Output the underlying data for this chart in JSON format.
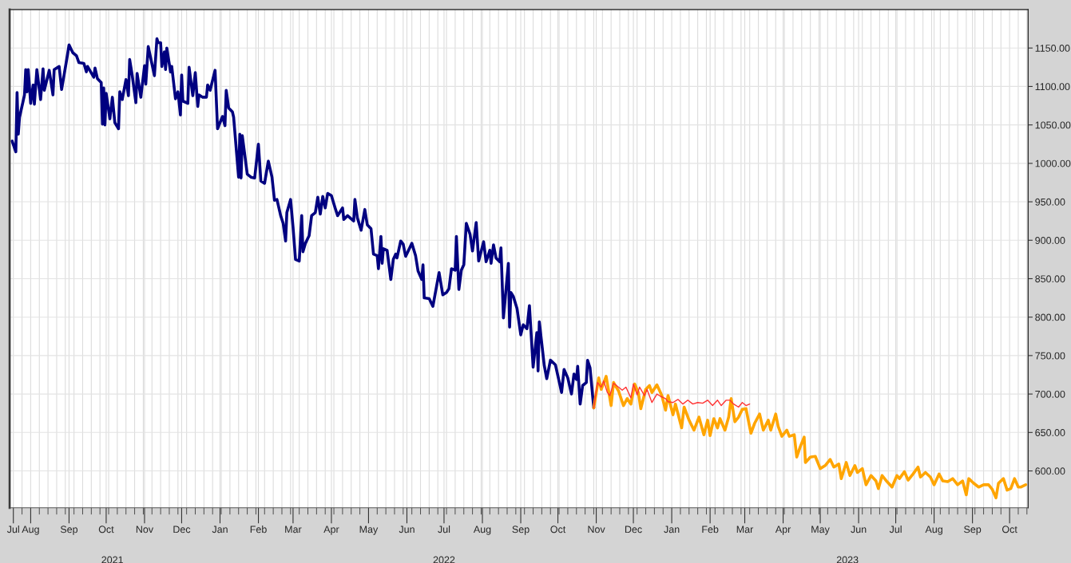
{
  "chart_data": {
    "type": "line",
    "xlim": [
      "2021-07-15",
      "2023-10-16"
    ],
    "ylim": [
      552,
      1200
    ],
    "x2lim": [
      "2021-07-15",
      "2023-10-16"
    ],
    "xticks": [
      {
        "value": "2021-07-18",
        "label": "Jul"
      },
      {
        "value": "2021-08-01",
        "label": "Aug"
      },
      {
        "value": "2021-09-01",
        "label": "Sep"
      },
      {
        "value": "2021-10-01",
        "label": "Oct"
      },
      {
        "value": "2021-11-01",
        "label": "Nov"
      },
      {
        "value": "2021-12-01",
        "label": "Dec"
      },
      {
        "value": "2022-01-01",
        "label": "Jan"
      },
      {
        "value": "2022-02-01",
        "label": "Feb"
      },
      {
        "value": "2022-03-01",
        "label": "Mar"
      },
      {
        "value": "2022-04-01",
        "label": "Apr"
      },
      {
        "value": "2022-05-01",
        "label": "May"
      },
      {
        "value": "2022-06-01",
        "label": "Jun"
      },
      {
        "value": "2022-07-01",
        "label": "Jul"
      },
      {
        "value": "2022-08-01",
        "label": "Aug"
      },
      {
        "value": "2022-09-01",
        "label": "Sep"
      },
      {
        "value": "2022-10-01",
        "label": "Oct"
      },
      {
        "value": "2022-11-01",
        "label": "Nov"
      },
      {
        "value": "2022-12-01",
        "label": "Dec"
      },
      {
        "value": "2023-01-01",
        "label": "Jan"
      },
      {
        "value": "2023-02-01",
        "label": "Feb"
      },
      {
        "value": "2023-03-01",
        "label": "Mar"
      },
      {
        "value": "2023-04-01",
        "label": "Apr"
      },
      {
        "value": "2023-05-01",
        "label": "May"
      },
      {
        "value": "2023-06-01",
        "label": "Jun"
      },
      {
        "value": "2023-07-01",
        "label": "Jul"
      },
      {
        "value": "2023-08-01",
        "label": "Aug"
      },
      {
        "value": "2023-09-01",
        "label": "Sep"
      },
      {
        "value": "2023-10-01",
        "label": "Oct"
      }
    ],
    "x2ticks": [
      {
        "value": "2021-10-06",
        "label": "2021"
      },
      {
        "value": "2022-07-01",
        "label": "2022"
      },
      {
        "value": "2023-05-23",
        "label": "2023"
      }
    ],
    "yticks": [
      {
        "value": 600,
        "label": "600.00"
      },
      {
        "value": 650,
        "label": "650.00"
      },
      {
        "value": 700,
        "label": "700.00"
      },
      {
        "value": 750,
        "label": "750.00"
      },
      {
        "value": 800,
        "label": "800.00"
      },
      {
        "value": 850,
        "label": "850.00"
      },
      {
        "value": 900,
        "label": "900.00"
      },
      {
        "value": 950,
        "label": "950.00"
      },
      {
        "value": 1000,
        "label": "1000.00"
      },
      {
        "value": 1050,
        "label": "1050.00"
      },
      {
        "value": 1100,
        "label": "1100.00"
      },
      {
        "value": 1150,
        "label": "1150.00"
      }
    ],
    "grid": true,
    "series": [
      {
        "color": "#000080",
        "x": [
          "2021-07-17",
          "2021-07-20",
          "2021-07-21",
          "2021-07-22",
          "2021-07-23",
          "2021-07-27",
          "2021-07-28",
          "2021-07-29",
          "2021-07-30",
          "2021-08-01",
          "2021-08-03",
          "2021-08-04",
          "2021-08-06",
          "2021-08-09",
          "2021-08-11",
          "2021-08-12",
          "2021-08-16",
          "2021-08-19",
          "2021-08-20",
          "2021-08-24",
          "2021-08-26",
          "2021-08-30",
          "2021-09-01",
          "2021-09-04",
          "2021-09-07",
          "2021-09-09",
          "2021-09-13",
          "2021-09-15",
          "2021-09-16",
          "2021-09-21",
          "2021-09-22",
          "2021-09-24",
          "2021-09-27",
          "2021-09-28",
          "2021-09-29",
          "2021-09-30",
          "2021-10-01",
          "2021-10-04",
          "2021-10-06",
          "2021-10-08",
          "2021-10-11",
          "2021-10-12",
          "2021-10-14",
          "2021-10-17",
          "2021-10-19",
          "2021-10-20",
          "2021-10-22",
          "2021-10-25",
          "2021-10-26",
          "2021-10-29",
          "2021-11-01",
          "2021-11-02",
          "2021-11-04",
          "2021-11-09",
          "2021-11-11",
          "2021-11-12",
          "2021-11-14",
          "2021-11-15",
          "2021-11-17",
          "2021-11-18",
          "2021-11-19",
          "2021-11-22",
          "2021-11-23",
          "2021-11-26",
          "2021-11-28",
          "2021-11-30",
          "2021-12-01",
          "2021-12-02",
          "2021-12-06",
          "2021-12-07",
          "2021-12-10",
          "2021-12-12",
          "2021-12-14",
          "2021-12-15",
          "2021-12-18",
          "2021-12-21",
          "2021-12-22",
          "2021-12-24",
          "2021-12-28",
          "2021-12-30",
          "2022-01-03",
          "2022-01-05",
          "2022-01-06",
          "2022-01-08",
          "2022-01-11",
          "2022-01-12",
          "2022-01-16",
          "2022-01-17",
          "2022-01-18",
          "2022-01-19",
          "2022-01-23",
          "2022-01-26",
          "2022-01-29",
          "2022-02-01",
          "2022-02-03",
          "2022-02-06",
          "2022-02-09",
          "2022-02-12",
          "2022-02-14",
          "2022-02-16",
          "2022-02-19",
          "2022-02-21",
          "2022-02-23",
          "2022-02-24",
          "2022-02-27",
          "2022-03-01",
          "2022-03-03",
          "2022-03-06",
          "2022-03-08",
          "2022-03-09",
          "2022-03-11",
          "2022-03-14",
          "2022-03-16",
          "2022-03-19",
          "2022-03-21",
          "2022-03-23",
          "2022-03-25",
          "2022-03-27",
          "2022-03-29",
          "2022-04-01",
          "2022-04-04",
          "2022-04-06",
          "2022-04-10",
          "2022-04-11",
          "2022-04-14",
          "2022-04-19",
          "2022-04-20",
          "2022-04-22",
          "2022-04-25",
          "2022-04-28",
          "2022-04-30",
          "2022-05-03",
          "2022-05-05",
          "2022-05-08",
          "2022-05-09",
          "2022-05-11",
          "2022-05-12",
          "2022-05-13",
          "2022-05-16",
          "2022-05-19",
          "2022-05-21",
          "2022-05-23",
          "2022-05-24",
          "2022-05-27",
          "2022-05-29",
          "2022-05-31",
          "2022-06-05",
          "2022-06-08",
          "2022-06-10",
          "2022-06-13",
          "2022-06-14",
          "2022-06-15",
          "2022-06-19",
          "2022-06-22",
          "2022-06-27",
          "2022-06-30",
          "2022-07-03",
          "2022-07-05",
          "2022-07-07",
          "2022-07-10",
          "2022-07-11",
          "2022-07-13",
          "2022-07-15",
          "2022-07-17",
          "2022-07-19",
          "2022-07-22",
          "2022-07-24",
          "2022-07-27",
          "2022-07-29",
          "2022-08-02",
          "2022-08-04",
          "2022-08-07",
          "2022-08-08",
          "2022-08-10",
          "2022-08-12",
          "2022-08-15",
          "2022-08-16",
          "2022-08-18",
          "2022-08-22",
          "2022-08-23",
          "2022-08-24",
          "2022-08-26",
          "2022-08-29",
          "2022-09-01",
          "2022-09-03",
          "2022-09-06",
          "2022-09-08",
          "2022-09-11",
          "2022-09-14",
          "2022-09-15",
          "2022-09-16",
          "2022-09-20",
          "2022-09-22",
          "2022-09-25",
          "2022-09-29",
          "2022-10-04",
          "2022-10-06",
          "2022-10-09",
          "2022-10-12",
          "2022-10-14",
          "2022-10-16",
          "2022-10-17",
          "2022-10-19",
          "2022-10-21",
          "2022-10-24",
          "2022-10-25",
          "2022-10-27",
          "2022-10-30"
        ],
        "values": [
          1029,
          1015,
          1092,
          1038,
          1060,
          1089,
          1122,
          1093,
          1122,
          1078,
          1102,
          1077,
          1122,
          1083,
          1123,
          1095,
          1121,
          1089,
          1122,
          1126,
          1096,
          1134,
          1154,
          1144,
          1140,
          1131,
          1130,
          1119,
          1126,
          1112,
          1124,
          1110,
          1105,
          1051,
          1098,
          1050,
          1091,
          1058,
          1086,
          1053,
          1045,
          1093,
          1083,
          1109,
          1088,
          1135,
          1115,
          1079,
          1117,
          1086,
          1127,
          1103,
          1152,
          1114,
          1162,
          1157,
          1157,
          1126,
          1145,
          1122,
          1150,
          1119,
          1126,
          1084,
          1093,
          1063,
          1115,
          1081,
          1078,
          1125,
          1088,
          1118,
          1074,
          1089,
          1086,
          1086,
          1102,
          1095,
          1121,
          1045,
          1061,
          1049,
          1095,
          1072,
          1067,
          1060,
          982,
          1038,
          981,
          1036,
          986,
          982,
          981,
          1025,
          977,
          974,
          1003,
          982,
          952,
          953,
          932,
          922,
          899,
          936,
          953,
          917,
          875,
          873,
          932,
          885,
          896,
          906,
          932,
          936,
          956,
          934,
          957,
          942,
          961,
          958,
          942,
          932,
          942,
          927,
          932,
          925,
          953,
          929,
          913,
          940,
          920,
          915,
          882,
          880,
          863,
          905,
          870,
          889,
          887,
          849,
          875,
          882,
          877,
          899,
          895,
          879,
          896,
          880,
          860,
          849,
          868,
          825,
          824,
          814,
          858,
          829,
          832,
          837,
          863,
          861,
          905,
          836,
          861,
          868,
          922,
          908,
          886,
          923,
          873,
          898,
          872,
          887,
          870,
          894,
          877,
          872,
          890,
          799,
          870,
          787,
          832,
          827,
          811,
          777,
          790,
          785,
          815,
          735,
          780,
          730,
          794,
          737,
          720,
          744,
          738,
          702,
          732,
          721,
          700,
          726,
          719,
          736,
          687,
          711,
          715,
          744,
          734,
          682
        ]
      },
      {
        "color": "#ffa500",
        "x": [
          "2022-10-30",
          "2022-11-03",
          "2022-11-05",
          "2022-11-09",
          "2022-11-13",
          "2022-11-15",
          "2022-11-19",
          "2022-11-23",
          "2022-11-26",
          "2022-11-29",
          "2022-12-02",
          "2022-12-05",
          "2022-12-07",
          "2022-12-11",
          "2022-12-14",
          "2022-12-16",
          "2022-12-20",
          "2022-12-24",
          "2022-12-27",
          "2022-12-29",
          "2023-01-02",
          "2023-01-04",
          "2023-01-09",
          "2023-01-11",
          "2023-01-15",
          "2023-01-19",
          "2023-01-23",
          "2023-01-27",
          "2023-01-30",
          "2023-02-01",
          "2023-02-04",
          "2023-02-07",
          "2023-02-09",
          "2023-02-13",
          "2023-02-16",
          "2023-02-18",
          "2023-02-21",
          "2023-02-24",
          "2023-02-27",
          "2023-03-02",
          "2023-03-06",
          "2023-03-09",
          "2023-03-13",
          "2023-03-16",
          "2023-03-20",
          "2023-03-22",
          "2023-03-26",
          "2023-03-28",
          "2023-03-31",
          "2023-04-04",
          "2023-04-06",
          "2023-04-10",
          "2023-04-12",
          "2023-04-15",
          "2023-04-18",
          "2023-04-19",
          "2023-04-23",
          "2023-04-27",
          "2023-05-01",
          "2023-05-05",
          "2023-05-09",
          "2023-05-12",
          "2023-05-16",
          "2023-05-18",
          "2023-05-22",
          "2023-05-25",
          "2023-05-29",
          "2023-05-31",
          "2023-06-04",
          "2023-06-07",
          "2023-06-11",
          "2023-06-15",
          "2023-06-17",
          "2023-06-20",
          "2023-06-24",
          "2023-06-28",
          "2023-07-02",
          "2023-07-04",
          "2023-07-08",
          "2023-07-11",
          "2023-07-15",
          "2023-07-19",
          "2023-07-21",
          "2023-07-25",
          "2023-07-29",
          "2023-08-01",
          "2023-08-05",
          "2023-08-08",
          "2023-08-12",
          "2023-08-16",
          "2023-08-20",
          "2023-08-24",
          "2023-08-27",
          "2023-08-29",
          "2023-09-02",
          "2023-09-06",
          "2023-09-10",
          "2023-09-14",
          "2023-09-17",
          "2023-09-20",
          "2023-09-22",
          "2023-09-26",
          "2023-09-29",
          "2023-10-02",
          "2023-10-05",
          "2023-10-08",
          "2023-10-10",
          "2023-10-14"
        ],
        "values": [
          682,
          721,
          706,
          723,
          685,
          715,
          704,
          685,
          694,
          687,
          713,
          702,
          681,
          706,
          711,
          702,
          712,
          698,
          679,
          698,
          673,
          687,
          656,
          683,
          666,
          653,
          670,
          647,
          666,
          646,
          668,
          656,
          668,
          653,
          670,
          694,
          664,
          670,
          680,
          681,
          649,
          662,
          674,
          653,
          666,
          653,
          674,
          658,
          645,
          653,
          645,
          647,
          618,
          632,
          644,
          611,
          618,
          619,
          603,
          607,
          615,
          605,
          609,
          590,
          611,
          594,
          607,
          598,
          603,
          582,
          594,
          587,
          577,
          594,
          586,
          579,
          594,
          590,
          599,
          588,
          596,
          605,
          592,
          598,
          592,
          582,
          596,
          587,
          586,
          590,
          582,
          587,
          569,
          590,
          584,
          579,
          582,
          582,
          576,
          565,
          584,
          590,
          575,
          577,
          590,
          579,
          579,
          582
        ]
      },
      {
        "color": "#ff3333",
        "x": [
          "2022-10-30",
          "2022-11-02",
          "2022-11-05",
          "2022-11-07",
          "2022-11-10",
          "2022-11-12",
          "2022-11-15",
          "2022-11-19",
          "2022-11-22",
          "2022-11-25",
          "2022-11-29",
          "2022-12-01",
          "2022-12-04",
          "2022-12-06",
          "2022-12-10",
          "2022-12-12",
          "2022-12-16",
          "2022-12-20",
          "2022-12-23",
          "2022-12-27",
          "2022-12-29",
          "2023-01-02",
          "2023-01-06",
          "2023-01-10",
          "2023-01-14",
          "2023-01-18",
          "2023-01-22",
          "2023-01-26",
          "2023-01-30",
          "2023-02-03",
          "2023-02-07",
          "2023-02-10",
          "2023-02-14",
          "2023-02-17",
          "2023-02-20",
          "2023-02-24",
          "2023-02-27",
          "2023-03-02",
          "2023-03-05"
        ],
        "values": [
          682,
          715,
          709,
          717,
          702,
          698,
          714,
          709,
          705,
          709,
          695,
          713,
          699,
          709,
          698,
          706,
          689,
          700,
          697,
          694,
          690,
          689,
          693,
          687,
          692,
          687,
          689,
          688,
          692,
          685,
          692,
          685,
          692,
          692,
          687,
          683,
          689,
          685,
          687
        ]
      }
    ]
  }
}
